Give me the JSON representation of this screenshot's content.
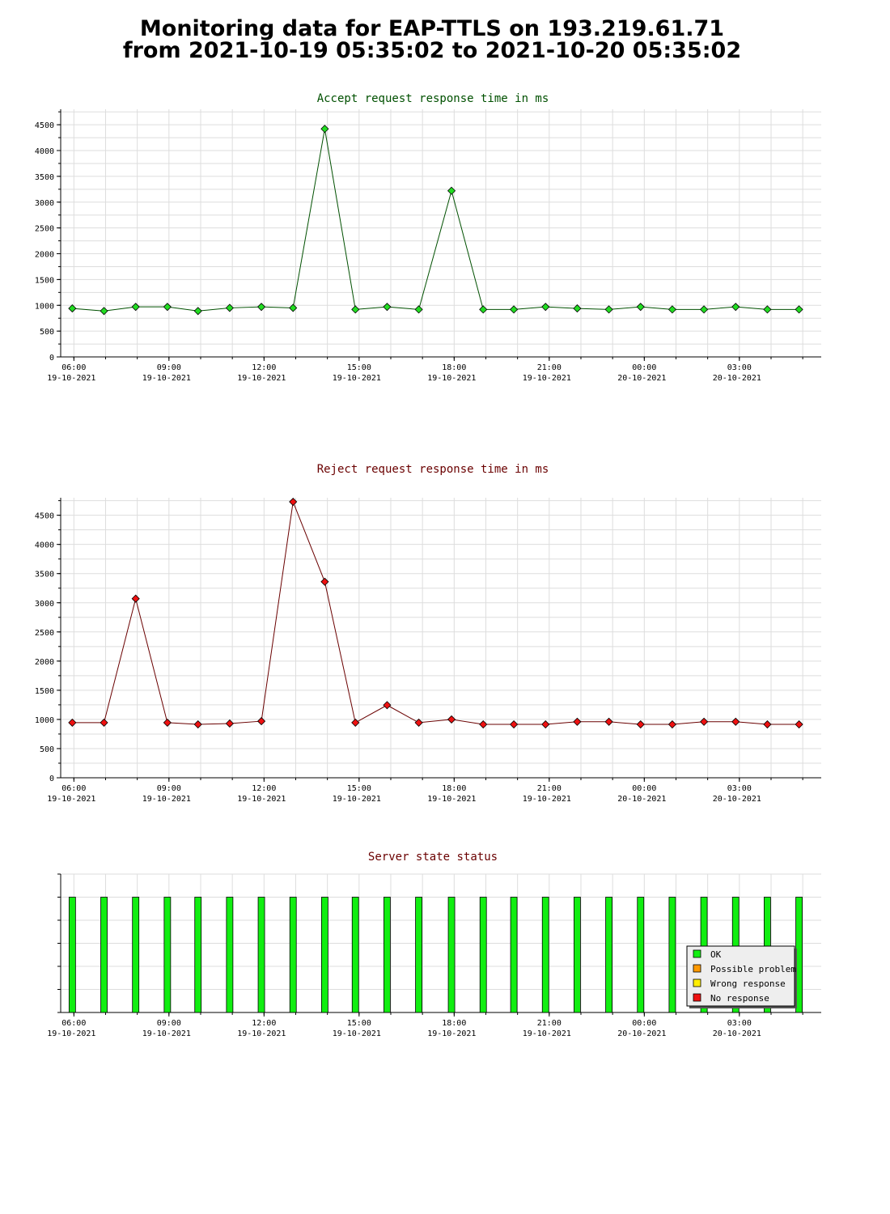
{
  "page": {
    "title_line1": "Monitoring data for EAP-TTLS on 193.219.61.71",
    "title_line2": "from 2021-10-19 05:35:02 to 2021-10-20 05:35:02"
  },
  "colors": {
    "accept_line": "#005000",
    "accept_point": "#22dd22",
    "reject_line": "#6a0000",
    "reject_point": "#ee1111",
    "grid": "#dddddd",
    "ok": "#11ee11",
    "possible_problem": "#ff9900",
    "wrong_response": "#ffee00",
    "no_response": "#ee1111"
  },
  "chart_data": [
    {
      "type": "line",
      "title": "Accept request response time in ms",
      "ylim": [
        0,
        4800
      ],
      "yticks": [
        0,
        500,
        1000,
        1500,
        2000,
        2500,
        3000,
        3500,
        4000,
        4500
      ],
      "xlim": [
        "2021-10-19 05:35",
        "2021-10-20 05:35"
      ],
      "xticks": [
        {
          "time": "06:00",
          "date": "19-10-2021"
        },
        {
          "time": "09:00",
          "date": "19-10-2021"
        },
        {
          "time": "12:00",
          "date": "19-10-2021"
        },
        {
          "time": "15:00",
          "date": "19-10-2021"
        },
        {
          "time": "18:00",
          "date": "19-10-2021"
        },
        {
          "time": "21:00",
          "date": "19-10-2021"
        },
        {
          "time": "00:00",
          "date": "20-10-2021"
        },
        {
          "time": "03:00",
          "date": "20-10-2021"
        }
      ],
      "grid": true,
      "x": [
        "2021-10-19 05:57",
        "2021-10-19 06:57",
        "2021-10-19 07:57",
        "2021-10-19 08:57",
        "2021-10-19 09:55",
        "2021-10-19 10:55",
        "2021-10-19 11:55",
        "2021-10-19 12:55",
        "2021-10-19 13:55",
        "2021-10-19 14:53",
        "2021-10-19 15:53",
        "2021-10-19 16:53",
        "2021-10-19 17:55",
        "2021-10-19 18:55",
        "2021-10-19 19:53",
        "2021-10-19 20:53",
        "2021-10-19 21:53",
        "2021-10-19 22:53",
        "2021-10-19 23:53",
        "2021-10-20 00:53",
        "2021-10-20 01:53",
        "2021-10-20 02:53",
        "2021-10-20 03:53",
        "2021-10-20 04:53"
      ],
      "values": [
        940,
        890,
        970,
        970,
        890,
        950,
        970,
        950,
        4420,
        920,
        970,
        920,
        3220,
        920,
        920,
        970,
        940,
        920,
        970,
        920,
        920,
        970,
        920,
        920
      ]
    },
    {
      "type": "line",
      "title": "Reject request response time in ms",
      "ylim": [
        0,
        4800
      ],
      "yticks": [
        0,
        500,
        1000,
        1500,
        2000,
        2500,
        3000,
        3500,
        4000,
        4500
      ],
      "xlim": [
        "2021-10-19 05:35",
        "2021-10-20 05:35"
      ],
      "xticks": [
        {
          "time": "06:00",
          "date": "19-10-2021"
        },
        {
          "time": "09:00",
          "date": "19-10-2021"
        },
        {
          "time": "12:00",
          "date": "19-10-2021"
        },
        {
          "time": "15:00",
          "date": "19-10-2021"
        },
        {
          "time": "18:00",
          "date": "19-10-2021"
        },
        {
          "time": "21:00",
          "date": "19-10-2021"
        },
        {
          "time": "00:00",
          "date": "20-10-2021"
        },
        {
          "time": "03:00",
          "date": "20-10-2021"
        }
      ],
      "grid": true,
      "x": [
        "2021-10-19 05:57",
        "2021-10-19 06:57",
        "2021-10-19 07:57",
        "2021-10-19 08:57",
        "2021-10-19 09:55",
        "2021-10-19 10:55",
        "2021-10-19 11:55",
        "2021-10-19 12:55",
        "2021-10-19 13:55",
        "2021-10-19 14:53",
        "2021-10-19 15:53",
        "2021-10-19 16:53",
        "2021-10-19 17:55",
        "2021-10-19 18:55",
        "2021-10-19 19:53",
        "2021-10-19 20:53",
        "2021-10-19 21:53",
        "2021-10-19 22:53",
        "2021-10-19 23:53",
        "2021-10-20 00:53",
        "2021-10-20 01:53",
        "2021-10-20 02:53",
        "2021-10-20 03:53",
        "2021-10-20 04:53"
      ],
      "values": [
        945,
        945,
        3070,
        945,
        915,
        930,
        970,
        4730,
        3360,
        945,
        1245,
        945,
        1000,
        915,
        915,
        915,
        960,
        960,
        915,
        915,
        960,
        960,
        915,
        915
      ]
    },
    {
      "type": "bar",
      "title": "Server state status",
      "xlim": [
        "2021-10-19 05:35",
        "2021-10-20 05:35"
      ],
      "xticks": [
        {
          "time": "06:00",
          "date": "19-10-2021"
        },
        {
          "time": "09:00",
          "date": "19-10-2021"
        },
        {
          "time": "12:00",
          "date": "19-10-2021"
        },
        {
          "time": "15:00",
          "date": "19-10-2021"
        },
        {
          "time": "18:00",
          "date": "19-10-2021"
        },
        {
          "time": "21:00",
          "date": "19-10-2021"
        },
        {
          "time": "00:00",
          "date": "20-10-2021"
        },
        {
          "time": "03:00",
          "date": "20-10-2021"
        }
      ],
      "x": [
        "2021-10-19 05:57",
        "2021-10-19 06:57",
        "2021-10-19 07:57",
        "2021-10-19 08:57",
        "2021-10-19 09:55",
        "2021-10-19 10:55",
        "2021-10-19 11:55",
        "2021-10-19 12:55",
        "2021-10-19 13:55",
        "2021-10-19 14:53",
        "2021-10-19 15:53",
        "2021-10-19 16:53",
        "2021-10-19 17:55",
        "2021-10-19 18:55",
        "2021-10-19 19:53",
        "2021-10-19 20:53",
        "2021-10-19 21:53",
        "2021-10-19 22:53",
        "2021-10-19 23:53",
        "2021-10-20 00:53",
        "2021-10-20 01:53",
        "2021-10-20 02:53",
        "2021-10-20 03:53",
        "2021-10-20 04:53"
      ],
      "status": [
        "OK",
        "OK",
        "OK",
        "OK",
        "OK",
        "OK",
        "OK",
        "OK",
        "OK",
        "OK",
        "OK",
        "OK",
        "OK",
        "OK",
        "OK",
        "OK",
        "OK",
        "OK",
        "OK",
        "OK",
        "OK",
        "OK",
        "OK",
        "OK"
      ],
      "legend_position": "bottom-right",
      "legend": [
        {
          "key": "ok",
          "label": "OK"
        },
        {
          "key": "possible_problem",
          "label": "Possible problem"
        },
        {
          "key": "wrong_response",
          "label": "Wrong response"
        },
        {
          "key": "no_response",
          "label": "No response"
        }
      ]
    }
  ]
}
